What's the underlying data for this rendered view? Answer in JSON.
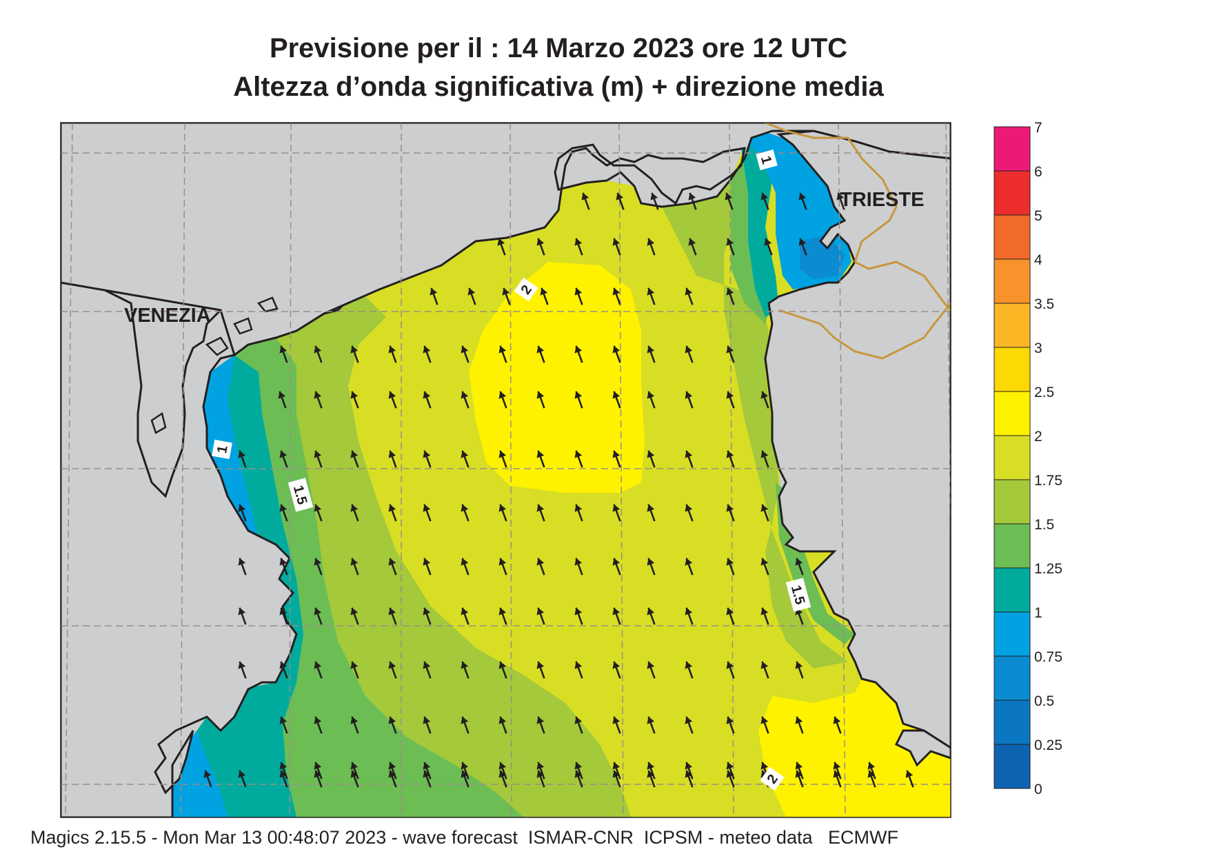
{
  "header": {
    "title_line1": "Previsione per il  :  14   Marzo   2023   ore 12 UTC",
    "title_line2": "Altezza d’onda significativa (m) + direzione media"
  },
  "map": {
    "place_labels": [
      "VENEZIA",
      "TRIESTE"
    ],
    "contour_labels": [
      "1",
      "1",
      "1.5",
      "2",
      "1.5",
      "2"
    ],
    "arrow_direction": "north-west",
    "colors": {
      "land": "#cdcecf",
      "coast": "#231f20",
      "border": "#c8963c",
      "grid": "#9a8e86"
    }
  },
  "legend": {
    "ticks": [
      "7",
      "6",
      "5",
      "4",
      "3.5",
      "3",
      "2.5",
      "2",
      "1.75",
      "1.5",
      "1.25",
      "1",
      "0.75",
      "0.5",
      "0.25",
      "0"
    ],
    "colors": [
      "#ec1a74",
      "#ec2d2d",
      "#f26a2a",
      "#f7932a",
      "#fbb626",
      "#fcd805",
      "#fff200",
      "#d8de24",
      "#a4c93a",
      "#6dbd55",
      "#00ab9e",
      "#00a2e1",
      "#0b8bd2",
      "#0b77c2",
      "#0e63b0"
    ]
  },
  "footer": {
    "text": "Magics 2.15.5 - Mon Mar 13 00:48:07 2023 - wave forecast  ISMAR-CNR  ICPSM - meteo data   ECMWF"
  }
}
